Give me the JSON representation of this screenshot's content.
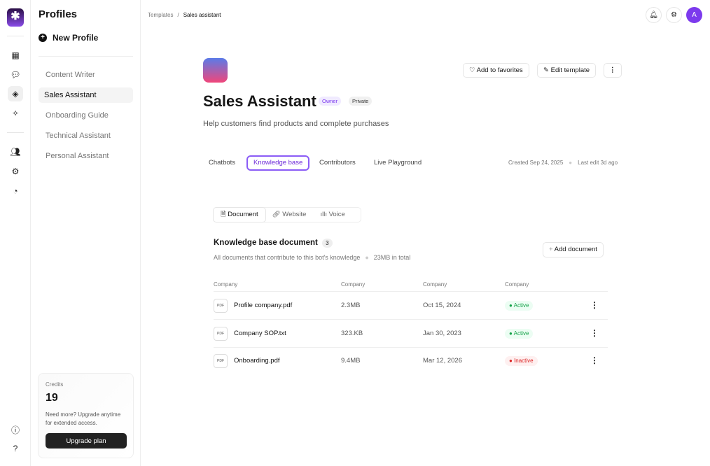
{
  "rail": {
    "logo": "✱",
    "icons": [
      "grid-icon",
      "chat-icon",
      "layers-icon",
      "sparkle-icon",
      "users-icon",
      "settings-icon",
      "pie-chart-icon",
      "info-icon",
      "help-icon"
    ]
  },
  "sidebar": {
    "title": "Profiles",
    "new_profile": "New Profile",
    "items": [
      {
        "label": "Content Writer"
      },
      {
        "label": "Sales Assistant",
        "active": true
      },
      {
        "label": "Onboarding Guide"
      },
      {
        "label": "Technical Assistant"
      },
      {
        "label": "Personal Assistant"
      }
    ],
    "credits": {
      "label": "Credits",
      "value": "19",
      "desc": "Need more? Upgrade anytime for extended access.",
      "button": "Upgrade plan"
    }
  },
  "breadcrumb": {
    "parent": "Templates",
    "sep": "/",
    "current": "Sales assistant"
  },
  "topbar": {
    "avatar": "A"
  },
  "profile": {
    "title": "Sales Assistant",
    "badges": [
      "Owner",
      "Private"
    ],
    "description": "Help customers find products and complete purchases",
    "favorites": "Add to favorites",
    "edit": "Edit template",
    "more": "⋮",
    "tabs": [
      "Chatbots",
      "Knowledge base",
      "Contributors",
      "Live Playground"
    ],
    "created": "Created Sep 24, 2025",
    "last_edit": "Last edit 3d ago"
  },
  "kb": {
    "segments": [
      "Document",
      "Website",
      "Voice"
    ],
    "title": "Knowledge base document",
    "count": "3",
    "subtitle": "All documents that contribute to this bot's knowledge",
    "total": "23MB in total",
    "add": "Add document",
    "headers": [
      "Company",
      "Company",
      "Company",
      "Company"
    ],
    "rows": [
      {
        "icon": "PDF",
        "name": "Profile company.pdf",
        "size": "2.3MB",
        "date": "Oct 15, 2024",
        "status": "Active"
      },
      {
        "icon": "PDF",
        "name": "Company SOP.txt",
        "size": "323.KB",
        "date": "Jan 30, 2023",
        "status": "Active"
      },
      {
        "icon": "PDF",
        "name": "Onboarding.pdf",
        "size": "9.4MB",
        "date": "Mar 12, 2026",
        "status": "Inactive"
      }
    ]
  },
  "colors": {
    "accent": "#8b5cf6",
    "active": "#16a34a",
    "inactive": "#dc2626"
  }
}
